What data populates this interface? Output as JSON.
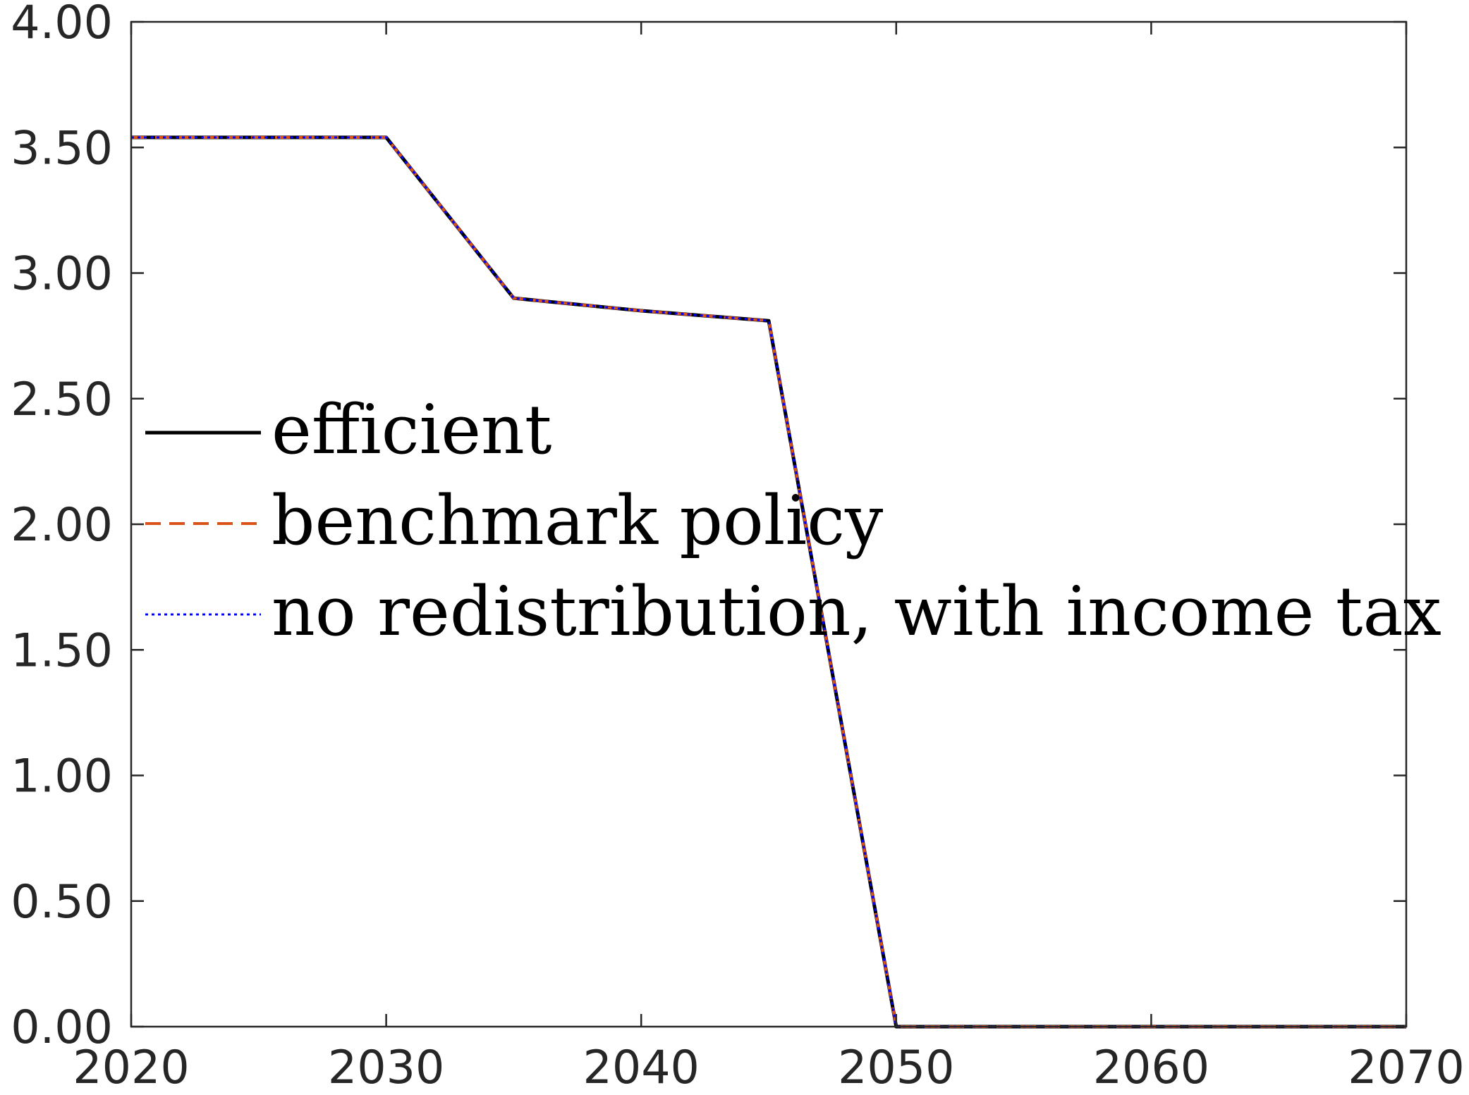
{
  "chart_data": {
    "type": "line",
    "title": "",
    "xlabel": "",
    "ylabel": "",
    "xlim": [
      2020,
      2070
    ],
    "ylim": [
      0,
      4
    ],
    "x_ticks": [
      "2020",
      "2030",
      "2040",
      "2050",
      "2060",
      "2070"
    ],
    "y_ticks": [
      "0.00",
      "0.50",
      "1.00",
      "1.50",
      "2.00",
      "2.50",
      "3.00",
      "3.50",
      "4.00"
    ],
    "grid": false,
    "legend_position": "center-left",
    "series": [
      {
        "name": "efficient",
        "color": "#000000",
        "style": "solid",
        "x": [
          2020,
          2025,
          2030,
          2035,
          2040,
          2045,
          2050,
          2055,
          2060,
          2065,
          2070
        ],
        "y": [
          3.54,
          3.54,
          3.54,
          2.9,
          2.85,
          2.81,
          0.0,
          0.0,
          0.0,
          0.0,
          0.0
        ]
      },
      {
        "name": "benchmark policy",
        "color": "#D95319",
        "style": "dashed",
        "x": [
          2020,
          2025,
          2030,
          2035,
          2040,
          2045,
          2050,
          2055,
          2060,
          2065,
          2070
        ],
        "y": [
          3.54,
          3.54,
          3.54,
          2.9,
          2.85,
          2.81,
          0.0,
          0.0,
          0.0,
          0.0,
          0.0
        ]
      },
      {
        "name": "no redistribution, with income tax",
        "color": "#0000FF",
        "style": "dotted",
        "x": [
          2020,
          2025,
          2030,
          2035,
          2040,
          2045,
          2050,
          2055,
          2060,
          2065,
          2070
        ],
        "y": [
          3.54,
          3.54,
          3.54,
          2.9,
          2.85,
          2.81,
          0.0,
          0.0,
          0.0,
          0.0,
          0.0
        ]
      }
    ]
  }
}
